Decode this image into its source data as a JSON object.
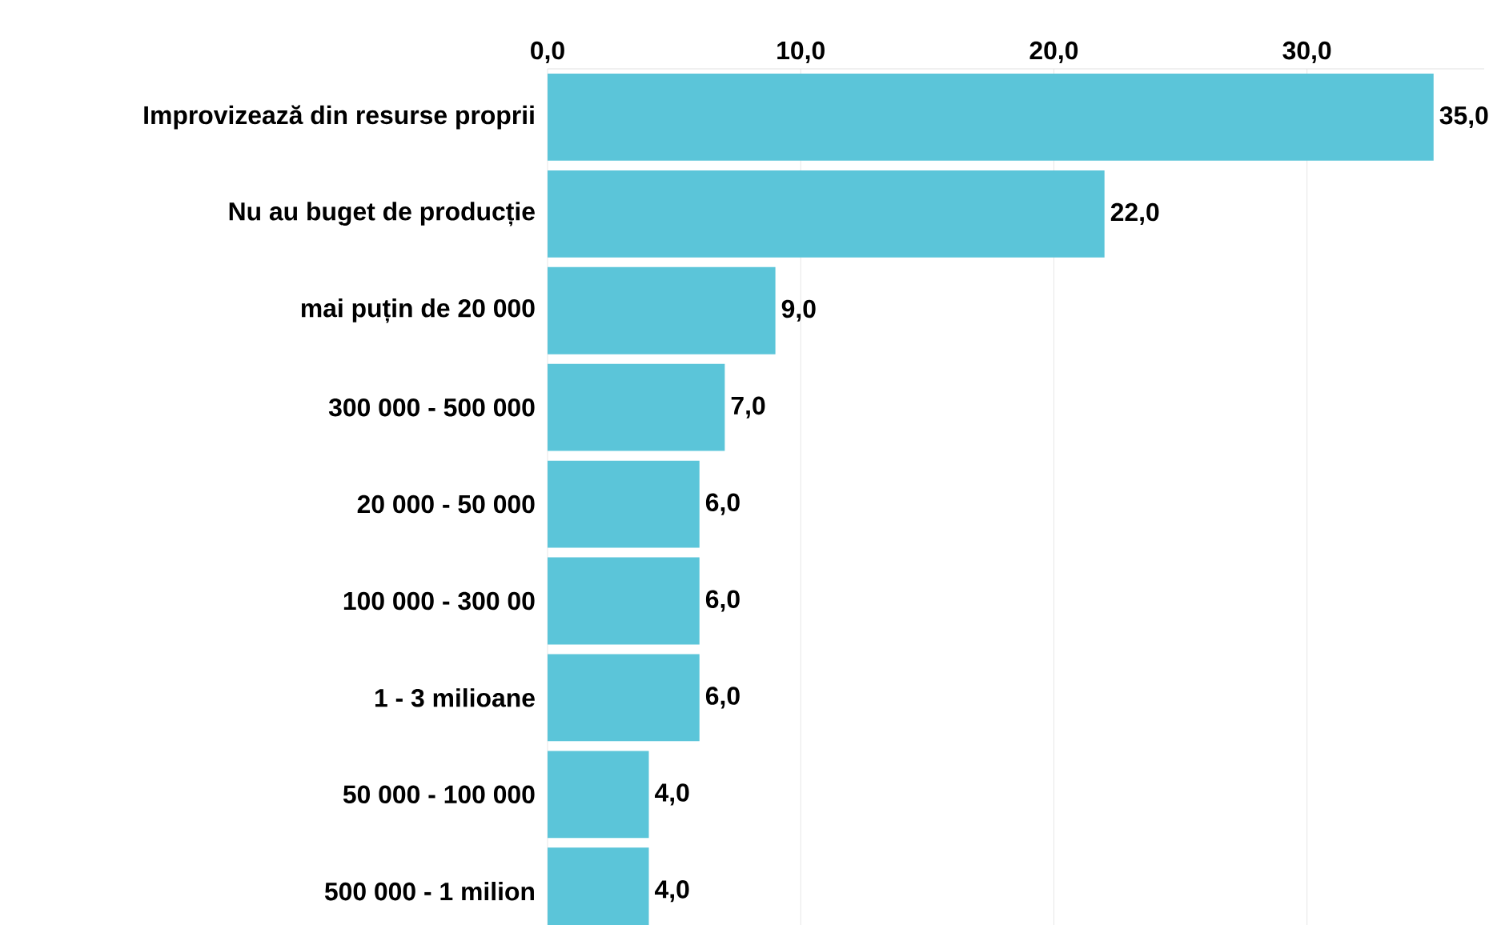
{
  "chart_data": {
    "type": "bar",
    "orientation": "horizontal",
    "categories": [
      "Improvizează din resurse proprii",
      "Nu au buget de producție",
      "mai puțin de 20 000",
      "300 000 - 500 000",
      "20 000 - 50 000",
      "100 000 - 300 00",
      "1 - 3 milioane",
      "50 000 - 100 000",
      "500 000 - 1 milion"
    ],
    "values": [
      35.0,
      22.0,
      9.0,
      7.0,
      6.0,
      6.0,
      6.0,
      4.0,
      4.0
    ],
    "value_labels": [
      "35,0",
      "22,0",
      "9,0",
      "7,0",
      "6,0",
      "6,0",
      "6,0",
      "4,0",
      "4,0"
    ],
    "color": "#5bc5d9",
    "xlim": [
      0,
      37
    ],
    "xticks": [
      {
        "value": 0,
        "label": "0,0"
      },
      {
        "value": 10,
        "label": "10,0"
      },
      {
        "value": 20,
        "label": "20,0"
      },
      {
        "value": 30,
        "label": "30,0"
      }
    ],
    "grid": "x"
  }
}
